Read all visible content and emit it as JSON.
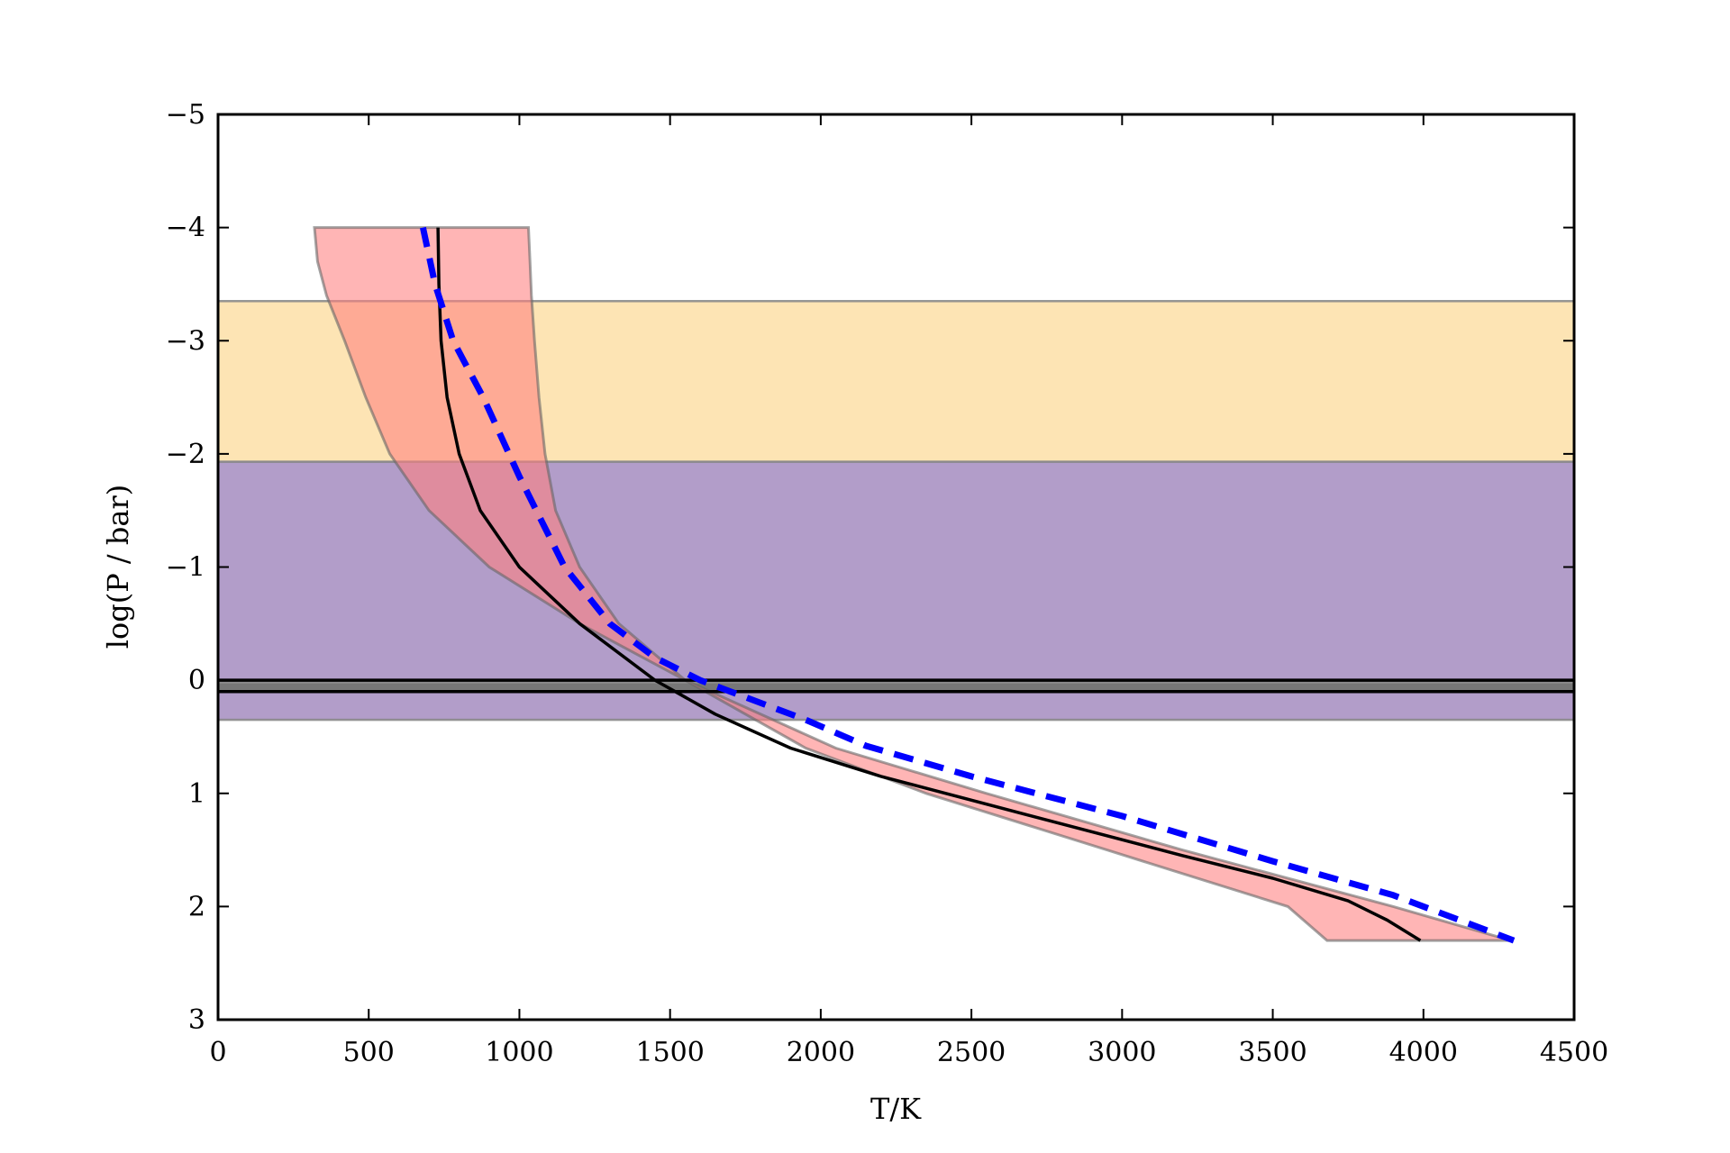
{
  "chart_data": {
    "type": "line",
    "title": "",
    "xlabel": "T/K",
    "ylabel": "log(P / bar)",
    "xlim": [
      0,
      4500
    ],
    "ylim": [
      3,
      -5
    ],
    "y_inverted": true,
    "grid": false,
    "xticks": [
      0,
      500,
      1000,
      1500,
      2000,
      2500,
      3000,
      3500,
      4000,
      4500
    ],
    "yticks": [
      -5,
      -4,
      -3,
      -2,
      -1,
      0,
      1,
      2,
      3
    ],
    "xtick_labels": [
      "0",
      "500",
      "1000",
      "1500",
      "2000",
      "2500",
      "3000",
      "3500",
      "4000",
      "4500"
    ],
    "ytick_labels": [
      "−5",
      "−4",
      "−3",
      "−2",
      "−1",
      "0",
      "1",
      "2",
      "3"
    ],
    "bands": [
      {
        "y0": -3.35,
        "y1": -1.93,
        "color": "#fde4b4"
      },
      {
        "y0": -1.93,
        "y1": 0.35,
        "color": "#b29dc9"
      },
      {
        "y0": 0.02,
        "y1": 0.1,
        "color": "#777777"
      }
    ],
    "hlines": [
      {
        "y": 0.0,
        "color": "#000000"
      },
      {
        "y": 0.1,
        "color": "#000000"
      }
    ],
    "envelope": {
      "color": "#ff8080",
      "opacity": 0.58,
      "p": [
        -4.0,
        -3.7,
        -3.4,
        -3.0,
        -2.5,
        -2.0,
        -1.5,
        -1.0,
        -0.5,
        0.0,
        0.3,
        0.6,
        1.0,
        1.5,
        2.0,
        2.3
      ],
      "t_low": [
        320,
        330,
        360,
        420,
        490,
        570,
        700,
        900,
        1200,
        1550,
        1750,
        1950,
        2350,
        2950,
        3550,
        3680
      ],
      "t_high": [
        1030,
        1035,
        1040,
        1050,
        1065,
        1085,
        1120,
        1200,
        1330,
        1550,
        1800,
        2050,
        2550,
        3200,
        3900,
        4290
      ]
    },
    "series": [
      {
        "style": "solid",
        "color": "#000000",
        "t": [
          730,
          733,
          740,
          760,
          800,
          870,
          1000,
          1200,
          1450,
          1650,
          1900,
          2200,
          2700,
          3200,
          3500,
          3750,
          3880,
          3990
        ],
        "p": [
          -4.0,
          -3.5,
          -3.0,
          -2.5,
          -2.0,
          -1.5,
          -1.0,
          -0.5,
          0.0,
          0.3,
          0.6,
          0.85,
          1.2,
          1.55,
          1.75,
          1.95,
          2.12,
          2.3
        ]
      },
      {
        "style": "dashed",
        "color": "#0000ff",
        "t": [
          680,
          720,
          780,
          880,
          1000,
          1150,
          1300,
          1450,
          1600,
          1750,
          1950,
          2150,
          2500,
          3000,
          3500,
          3900,
          4300
        ],
        "p": [
          -4.0,
          -3.5,
          -3.0,
          -2.5,
          -1.8,
          -1.0,
          -0.5,
          -0.2,
          0.0,
          0.15,
          0.35,
          0.58,
          0.85,
          1.2,
          1.6,
          1.9,
          2.3
        ]
      }
    ]
  }
}
